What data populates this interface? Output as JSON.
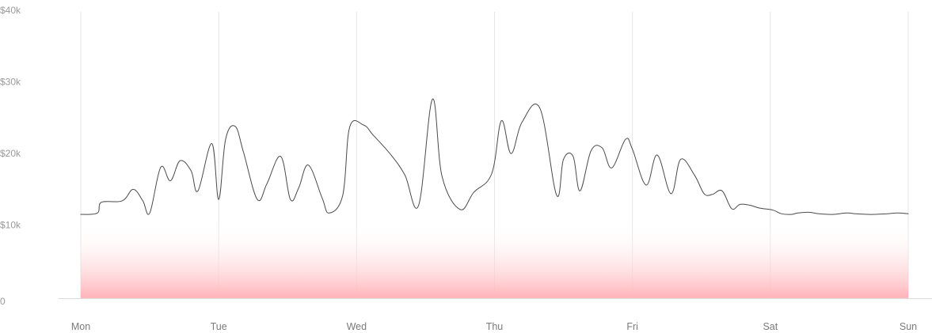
{
  "chart_data": {
    "type": "area",
    "title": "",
    "xlabel": "",
    "ylabel": "",
    "categories": [
      "Mon",
      "Tue",
      "Wed",
      "Thu",
      "Fri",
      "Sat",
      "Sun"
    ],
    "y_ticks": [
      "0",
      "$10k",
      "$20k",
      "$30k",
      "$40k"
    ],
    "y_tick_values": [
      0,
      10000,
      20000,
      30000,
      40000
    ],
    "ylim": [
      0,
      40000
    ],
    "xlim": [
      0,
      6
    ],
    "grid": "vertical",
    "colors": {
      "line": "#4a4a4a",
      "fill_bottom": "#ffb3b8",
      "grid": "#e6e6e6",
      "axis": "#dddddd"
    },
    "series": [
      {
        "x": [
          0,
          0.12,
          0.15,
          0.3,
          0.38,
          0.45,
          0.5,
          0.58,
          0.65,
          0.72,
          0.8,
          0.85,
          0.95,
          1.0,
          1.05,
          1.12,
          1.18,
          1.28,
          1.35,
          1.45,
          1.52,
          1.58,
          1.65,
          1.75,
          1.8,
          1.9,
          1.95,
          2.05,
          2.12,
          2.25,
          2.35,
          2.45,
          2.55,
          2.62,
          2.75,
          2.85,
          2.98,
          3.05,
          3.12,
          3.2,
          3.33,
          3.45,
          3.5,
          3.57,
          3.62,
          3.7,
          3.78,
          3.85,
          3.95,
          4.0,
          4.1,
          4.18,
          4.28,
          4.35,
          4.45,
          4.52,
          4.58,
          4.65,
          4.72,
          4.78,
          4.85,
          4.92,
          5.02,
          5.08,
          5.15,
          5.2,
          5.28,
          5.35,
          5.45,
          5.55,
          5.62,
          5.72,
          5.85,
          5.92,
          6.0
        ],
        "values": [
          11700,
          11900,
          13400,
          13600,
          15200,
          13600,
          11900,
          18300,
          16400,
          19200,
          17800,
          15000,
          21600,
          13800,
          22200,
          24000,
          20400,
          13800,
          16000,
          19800,
          13800,
          15400,
          18600,
          14000,
          11900,
          14400,
          23900,
          24200,
          22800,
          20000,
          17200,
          13000,
          27800,
          17000,
          12400,
          14800,
          17400,
          24800,
          20200,
          24600,
          26500,
          14400,
          19400,
          19800,
          15000,
          20600,
          21000,
          18200,
          22200,
          20800,
          15800,
          20000,
          14600,
          19400,
          17200,
          14600,
          14500,
          15000,
          12500,
          13100,
          13000,
          12600,
          12300,
          11800,
          11700,
          11900,
          12000,
          11800,
          11700,
          11900,
          11800,
          11700,
          11800,
          11900,
          11800
        ]
      }
    ]
  }
}
